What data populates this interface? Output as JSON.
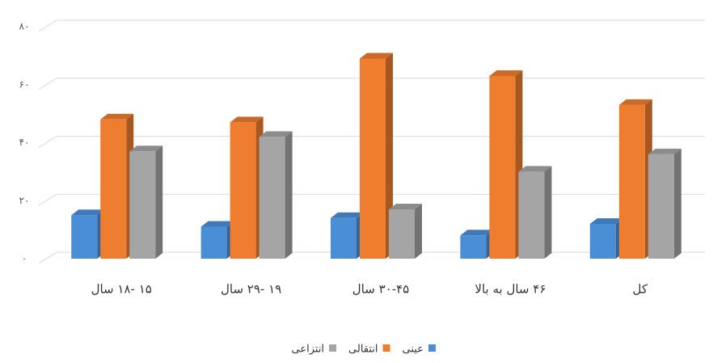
{
  "chart_data": {
    "type": "bar3d",
    "categories": [
      "۱۵ -۱۸ سال",
      "۱۹ -۲۹ سال",
      "۳۰-۴۵ سال",
      "۴۶ سال به بالا",
      "کل"
    ],
    "series": [
      {
        "name": "عینی",
        "color": "#4a8fd6",
        "values": [
          15,
          11,
          14,
          8,
          12
        ]
      },
      {
        "name": "انتقالی",
        "color": "#ef7d2f",
        "values": [
          48,
          47,
          69,
          63,
          53
        ]
      },
      {
        "name": "انتزاعی",
        "color": "#a5a5a5",
        "values": [
          37,
          42,
          17,
          30,
          36
        ]
      }
    ],
    "ylim": [
      0,
      80
    ],
    "yticks": [
      {
        "value": 0,
        "label": "۰"
      },
      {
        "value": 20,
        "label": "۲۰"
      },
      {
        "value": 40,
        "label": "۴۰"
      },
      {
        "value": 60,
        "label": "۶۰"
      },
      {
        "value": 80,
        "label": "۸۰"
      }
    ],
    "grid": true
  }
}
